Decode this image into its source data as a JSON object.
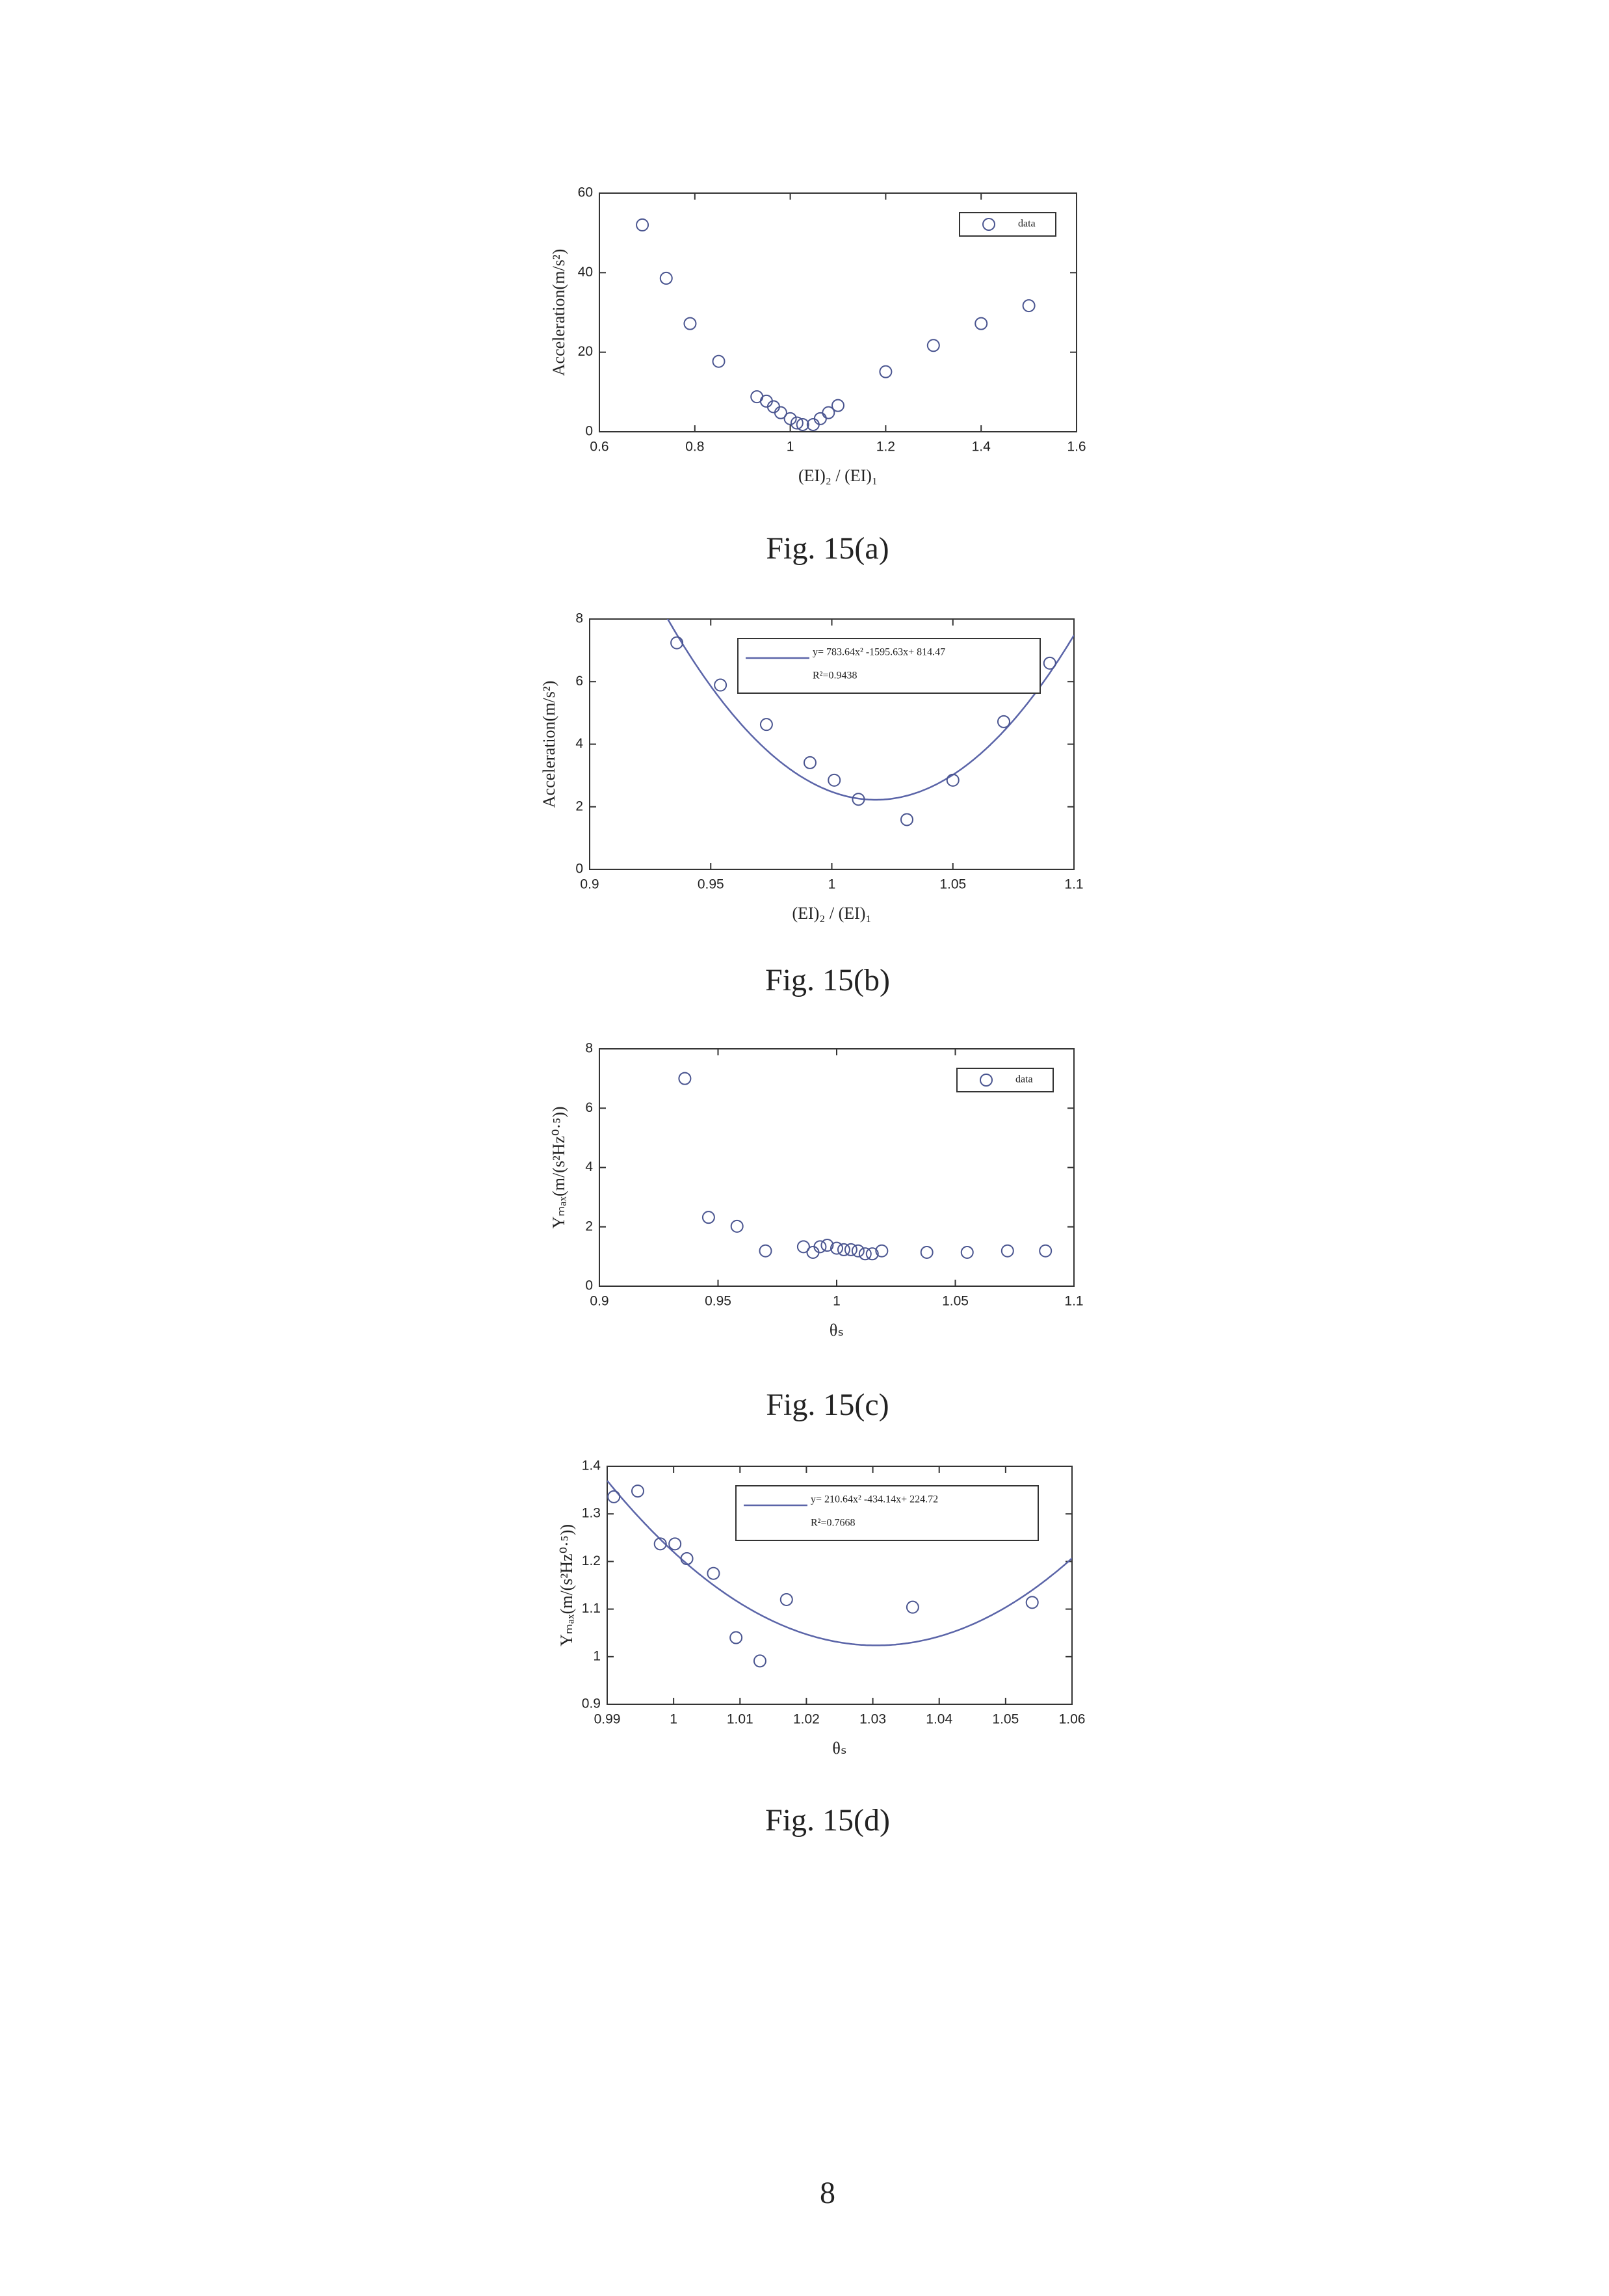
{
  "chart_data": [
    {
      "type": "scatter",
      "caption": "Fig. 15(a)",
      "xlabel": "(EI)₂ / (EI)₁",
      "ylabel": "Acceleration(m/s²)",
      "xlim": [
        0.6,
        1.6
      ],
      "xticks": [
        0.6,
        0.8,
        1,
        1.2,
        1.4,
        1.6
      ],
      "ylim": [
        0,
        60
      ],
      "yticks": [
        0,
        20,
        40,
        60
      ],
      "legend": "upper right",
      "series": [
        {
          "name": "data",
          "color": "#4a5590",
          "x": [
            0.69,
            0.74,
            0.79,
            0.85,
            0.93,
            0.95,
            0.965,
            0.98,
            1.0,
            1.014,
            1.026,
            1.048,
            1.063,
            1.08,
            1.1,
            1.2,
            1.3,
            1.4,
            1.5
          ],
          "values": [
            52,
            38.6,
            27.2,
            17.7,
            8.8,
            7.7,
            6.3,
            4.8,
            3.3,
            2.2,
            1.8,
            1.8,
            3.3,
            4.8,
            6.6,
            15.1,
            21.7,
            27.2,
            31.7
          ]
        }
      ]
    },
    {
      "type": "scatter",
      "caption": "Fig. 15(b)",
      "xlabel": "(EI)₂ / (EI)₁",
      "ylabel": "Acceleration(m/s²)",
      "xlim": [
        0.9,
        1.1
      ],
      "xticks": [
        0.9,
        0.95,
        1,
        1.05,
        1.1
      ],
      "ylim": [
        0,
        8
      ],
      "yticks": [
        0,
        2,
        4,
        6,
        8
      ],
      "legend": "upper right",
      "series": [
        {
          "color": "#4a5590",
          "x": [
            0.936,
            0.954,
            0.973,
            0.991,
            1.001,
            1.011,
            1.031,
            1.05,
            1.071,
            1.09
          ],
          "values": [
            7.24,
            5.89,
            4.63,
            3.41,
            2.85,
            2.24,
            1.59,
            2.85,
            4.72,
            6.59
          ]
        }
      ],
      "fit": {
        "coefficients": [
          783.64,
          -1595.63,
          814.47
        ],
        "color": "#5a64a8",
        "label": "y= 783.64x² -1595.63x+ 814.47",
        "r2_label": "R²=0.9438"
      }
    },
    {
      "type": "scatter",
      "caption": "Fig. 15(c)",
      "xlabel": "θₛ",
      "ylabel": "Yₘₐₓ(m/(s²Hz⁰·⁵))",
      "xlim": [
        0.9,
        1.1
      ],
      "xticks": [
        0.9,
        0.95,
        1,
        1.05,
        1.1
      ],
      "ylim": [
        0,
        8
      ],
      "yticks": [
        0,
        2,
        4,
        6,
        8
      ],
      "legend": "upper right",
      "series": [
        {
          "name": "data",
          "color": "#4a5590",
          "x": [
            0.936,
            0.946,
            0.958,
            0.97,
            0.986,
            0.99,
            0.993,
            0.996,
            1.0,
            1.003,
            1.006,
            1.009,
            1.012,
            1.015,
            1.019,
            1.038,
            1.055,
            1.072,
            1.088
          ],
          "values": [
            7.0,
            2.32,
            2.02,
            1.19,
            1.33,
            1.14,
            1.33,
            1.38,
            1.28,
            1.23,
            1.23,
            1.19,
            1.09,
            1.09,
            1.19,
            1.14,
            1.14,
            1.19,
            1.19
          ]
        }
      ]
    },
    {
      "type": "scatter",
      "caption": "Fig. 15(d)",
      "xlabel": "θₛ",
      "ylabel": "Yₘₐₓ(m/(s²Hz⁰·⁵))",
      "xlim": [
        0.99,
        1.06
      ],
      "xticks": [
        0.99,
        1,
        1.01,
        1.02,
        1.03,
        1.04,
        1.05,
        1.06
      ],
      "ylim": [
        0.9,
        1.4
      ],
      "yticks": [
        0.9,
        1,
        1.1,
        1.2,
        1.3,
        1.4
      ],
      "legend": "upper right",
      "series": [
        {
          "color": "#4a5590",
          "x": [
            0.991,
            0.9946,
            0.998,
            1.0002,
            1.002,
            1.006,
            1.0094,
            1.013,
            1.017,
            1.036,
            1.054
          ],
          "values": [
            1.336,
            1.348,
            1.237,
            1.237,
            1.206,
            1.175,
            1.04,
            0.991,
            1.12,
            1.104,
            1.114
          ]
        }
      ],
      "fit": {
        "coefficients": [
          210.64,
          -434.14,
          224.72
        ],
        "color": "#5a64a8",
        "label": "y= 210.64x² -434.14x+ 224.72",
        "r2_label": "R²=0.7668"
      }
    }
  ],
  "page_number": "8"
}
